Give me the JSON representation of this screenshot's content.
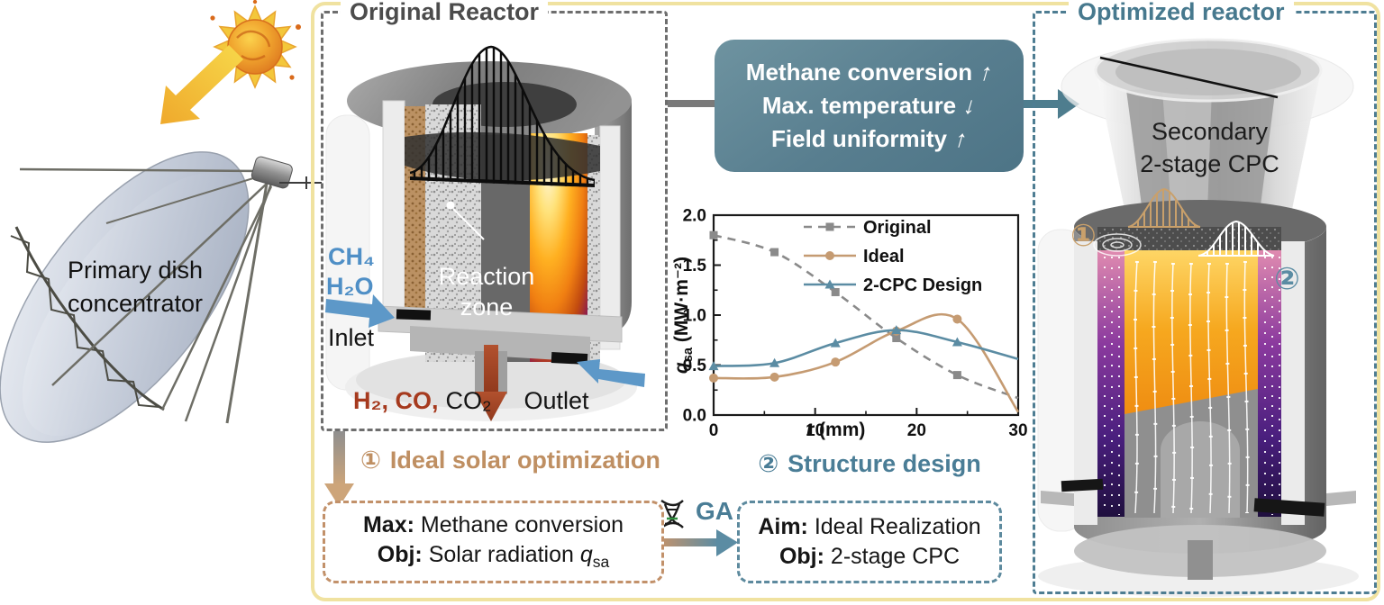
{
  "scene": {
    "dish_label_line1": "Primary dish",
    "dish_label_line2": "concentrator"
  },
  "original_reactor": {
    "title": "Original Reactor",
    "inlet_species_1": "CH₄",
    "inlet_species_2": "H₂O",
    "inlet_label": "Inlet",
    "reaction_zone_line1": "Reaction",
    "reaction_zone_line2": "zone",
    "outlet_species_red": "H₂, CO,",
    "outlet_species_black": "CO₂",
    "outlet_label": "Outlet"
  },
  "benefits_box": {
    "lines": [
      {
        "text": "Methane conversion",
        "arrow": "↑"
      },
      {
        "text": "Max. temperature",
        "arrow": "↓"
      },
      {
        "text": "Field uniformity",
        "arrow": "↑"
      }
    ]
  },
  "chart_data": {
    "type": "line",
    "x": [
      0,
      6,
      12,
      18,
      24,
      30
    ],
    "series": [
      {
        "name": "Original",
        "values": [
          1.8,
          1.63,
          1.23,
          0.77,
          0.4,
          0.17
        ],
        "color": "#8a8a8a",
        "dash": true,
        "marker": "square"
      },
      {
        "name": "Ideal",
        "values": [
          0.37,
          0.38,
          0.53,
          0.84,
          0.96,
          0.03
        ],
        "color": "#c59b72",
        "dash": false,
        "marker": "circle"
      },
      {
        "name": "2-CPC Design",
        "values": [
          0.49,
          0.52,
          0.72,
          0.85,
          0.73,
          0.56
        ],
        "color": "#5b8ca3",
        "dash": false,
        "marker": "triangle"
      }
    ],
    "title": "",
    "xlabel_sym": "r",
    "xlabel_unit": "(mm)",
    "ylabel_sym": "q",
    "ylabel_sub": "sa",
    "ylabel_unit": "(MW·m⁻²)",
    "xlim": [
      0,
      30
    ],
    "ylim": [
      0,
      2
    ],
    "xticks": [
      0,
      10,
      20,
      30
    ],
    "yticks": [
      0,
      0.5,
      1.0,
      1.5,
      2.0
    ],
    "x_minor": [
      5,
      15,
      25
    ],
    "y_minor": [
      0.25,
      0.75,
      1.25,
      1.75
    ],
    "grid": false,
    "legend_position": "top-right"
  },
  "step1": {
    "badge": "①",
    "label": "Ideal solar optimization"
  },
  "step2": {
    "badge": "②",
    "label": "Structure design"
  },
  "opt_box1": {
    "line1_bold": "Max:",
    "line1_text": " Methane conversion",
    "line2_bold": "Obj:",
    "line2_text": " Solar radiation ",
    "line2_sym": "q",
    "line2_sub": "sa"
  },
  "ga": {
    "label": "GA"
  },
  "opt_box2": {
    "line1_bold": "Aim:",
    "line1_text": " Ideal Realization",
    "line2_bold": "Obj:",
    "line2_text": " 2-stage CPC"
  },
  "optimized_reactor": {
    "title": "Optimized reactor",
    "cpc_label_line1": "Secondary",
    "cpc_label_line2": "2-stage CPC",
    "marker1": "①",
    "marker2": "②"
  },
  "colors": {
    "accent_teal": "#4e7d92",
    "accent_tan": "#c2916a",
    "arrow_blue": "#5d98c8",
    "arrow_rust": "#a8431f",
    "frame_yellow": "#f0e2a0",
    "benefit_box_fill": "#587e8f"
  }
}
